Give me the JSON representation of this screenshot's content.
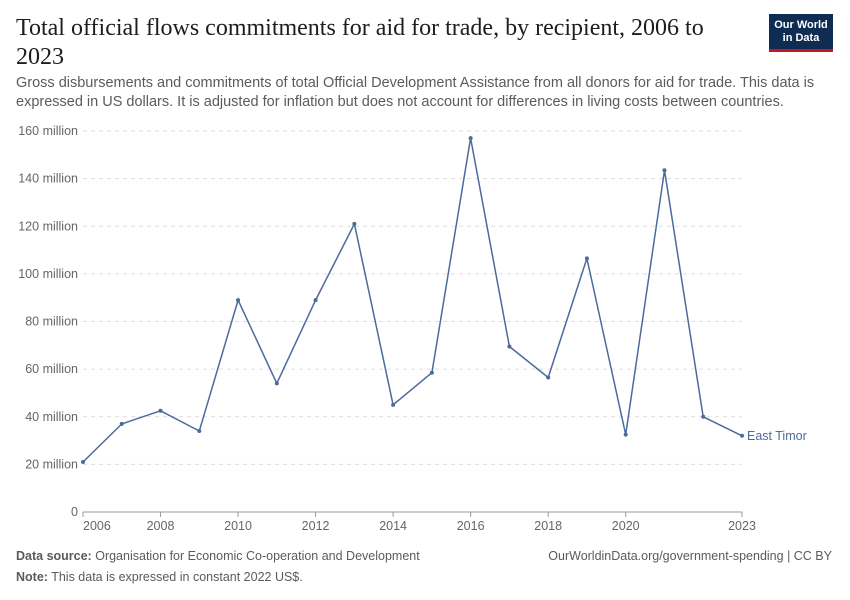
{
  "header": {
    "title": "Total official flows commitments for aid for trade, by recipient, 2006 to 2023",
    "subtitle": "Gross disbursements and commitments of total Official Development Assistance from all donors for aid for trade. This data is expressed in US dollars. It is adjusted for inflation but does not account for differences in living costs between countries.",
    "logo_line1": "Our World",
    "logo_line2": "in Data"
  },
  "colors": {
    "series": "#4c6a9c",
    "grid": "#dddddd",
    "logo_bg": "#0f2d52",
    "logo_accent": "#c3152b"
  },
  "chart_data": {
    "type": "line",
    "title": "Total official flows commitments for aid for trade, by recipient, 2006 to 2023",
    "xlabel": "",
    "ylabel": "",
    "xlim": [
      2006,
      2023
    ],
    "ylim": [
      0,
      160000000
    ],
    "y_ticks": [
      {
        "value": 0,
        "label": "0"
      },
      {
        "value": 20000000,
        "label": "20 million"
      },
      {
        "value": 40000000,
        "label": "40 million"
      },
      {
        "value": 60000000,
        "label": "60 million"
      },
      {
        "value": 80000000,
        "label": "80 million"
      },
      {
        "value": 100000000,
        "label": "100 million"
      },
      {
        "value": 120000000,
        "label": "120 million"
      },
      {
        "value": 140000000,
        "label": "140 million"
      },
      {
        "value": 160000000,
        "label": "160 million"
      }
    ],
    "x_ticks": [
      {
        "value": 2006,
        "label": "2006"
      },
      {
        "value": 2008,
        "label": "2008"
      },
      {
        "value": 2010,
        "label": "2010"
      },
      {
        "value": 2012,
        "label": "2012"
      },
      {
        "value": 2014,
        "label": "2014"
      },
      {
        "value": 2016,
        "label": "2016"
      },
      {
        "value": 2018,
        "label": "2018"
      },
      {
        "value": 2020,
        "label": "2020"
      },
      {
        "value": 2023,
        "label": "2023"
      }
    ],
    "grid": true,
    "series": [
      {
        "name": "East Timor",
        "x": [
          2006,
          2007,
          2008,
          2009,
          2010,
          2011,
          2012,
          2013,
          2014,
          2015,
          2016,
          2017,
          2018,
          2019,
          2020,
          2021,
          2022,
          2023
        ],
        "values": [
          21000000,
          37000000,
          42500000,
          34000000,
          89000000,
          54000000,
          89000000,
          121000000,
          45000000,
          58500000,
          157000000,
          69500000,
          56500000,
          106500000,
          32500000,
          143500000,
          40000000,
          32000000
        ]
      }
    ]
  },
  "footer": {
    "source_label": "Data source:",
    "source_text": "Organisation for Economic Co-operation and Development",
    "note_label": "Note:",
    "note_text": "This data is expressed in constant 2022 US$.",
    "license": "OurWorldinData.org/government-spending | CC BY"
  }
}
